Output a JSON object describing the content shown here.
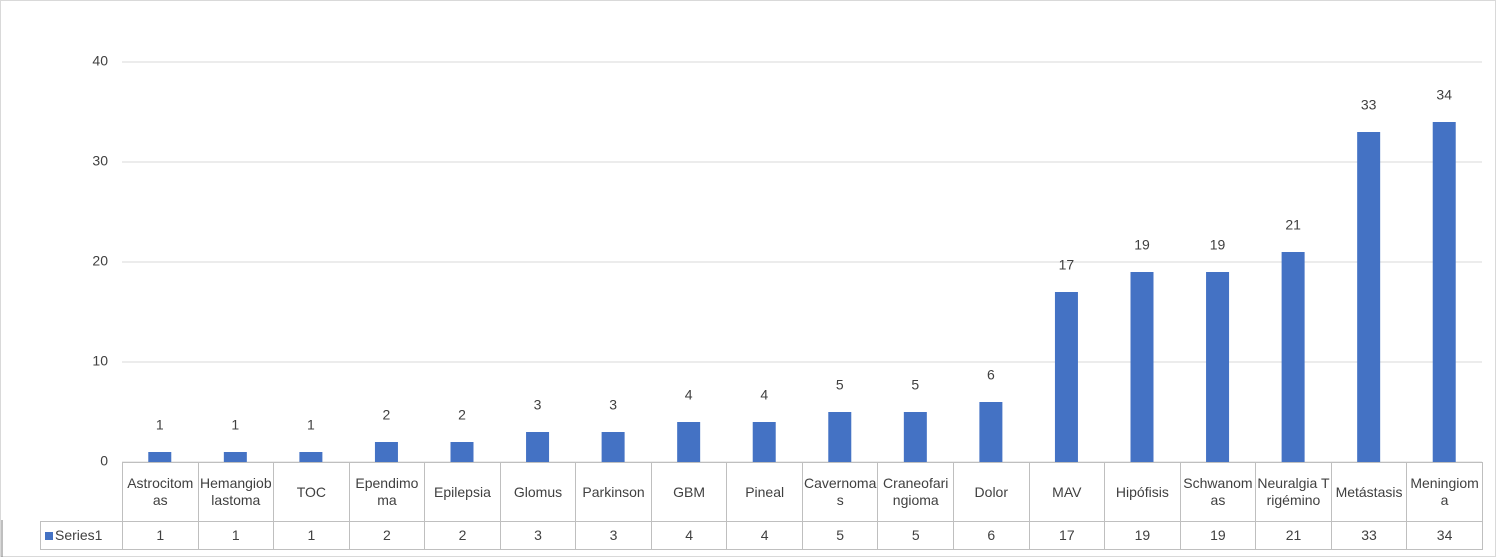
{
  "chart_data": {
    "type": "bar",
    "categories": [
      "Astrocitomas",
      "Hemangioblastoma",
      "TOC",
      "Ependimoma",
      "Epilepsia",
      "Glomus",
      "Parkinson",
      "GBM",
      "Pineal",
      "Cavernomas",
      "Craneofaringioma",
      "Dolor",
      "MAV",
      "Hipófisis",
      "Schwanomas",
      "Neuralgia Trigémino",
      "Metástasis",
      "Meningioma"
    ],
    "series": [
      {
        "name": "Series1",
        "color": "#4472c4",
        "values": [
          1,
          1,
          1,
          2,
          2,
          3,
          3,
          4,
          4,
          5,
          5,
          6,
          17,
          19,
          19,
          21,
          33,
          34
        ]
      }
    ],
    "ylim": [
      0,
      40
    ],
    "yticks": [
      0,
      10,
      20,
      30,
      40
    ],
    "grid": true
  }
}
